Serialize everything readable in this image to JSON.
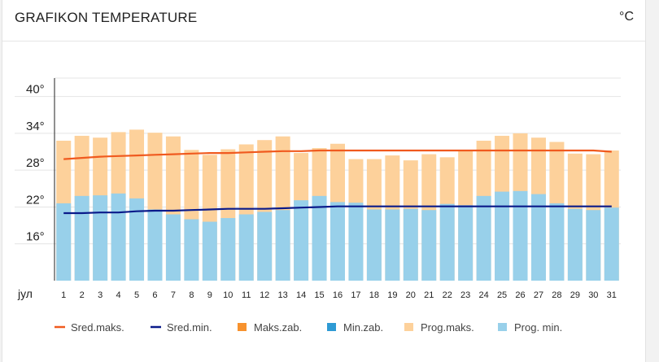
{
  "header": {
    "title": "GRAFIKON TEMPERATURE",
    "unit": "°C"
  },
  "chart_data": {
    "type": "bar",
    "title": "GRAFIKON TEMPERATURE",
    "month_label": "јул",
    "ylabel": "°C",
    "ylim": [
      10,
      43
    ],
    "yticks": [
      40,
      34,
      28,
      22,
      16
    ],
    "ytick_labels": [
      "40°",
      "34°",
      "28°",
      "22°",
      "16°"
    ],
    "grid": true,
    "categories": [
      "1",
      "2",
      "3",
      "4",
      "5",
      "6",
      "7",
      "8",
      "9",
      "10",
      "11",
      "12",
      "13",
      "14",
      "15",
      "16",
      "17",
      "18",
      "19",
      "20",
      "21",
      "22",
      "23",
      "24",
      "25",
      "26",
      "27",
      "28",
      "29",
      "30",
      "31"
    ],
    "series": [
      {
        "name": "Prog.maks.",
        "kind": "bar",
        "color": "#fdd19b",
        "values": [
          32.8,
          33.6,
          33.3,
          34.2,
          34.6,
          34.1,
          33.5,
          31.3,
          30.5,
          31.4,
          32.2,
          32.9,
          33.5,
          30.8,
          31.6,
          32.3,
          29.8,
          29.8,
          30.4,
          29.6,
          30.6,
          30.1,
          31.3,
          32.8,
          33.6,
          34.0,
          33.3,
          32.6,
          30.7,
          30.6,
          31.2
        ]
      },
      {
        "name": "Prog. min.",
        "kind": "bar",
        "color": "#98d0ea",
        "values": [
          22.6,
          23.8,
          23.9,
          24.2,
          23.4,
          21.6,
          20.8,
          20.0,
          19.6,
          20.2,
          20.8,
          21.2,
          21.5,
          23.1,
          23.8,
          22.8,
          22.7,
          21.6,
          21.6,
          21.7,
          21.5,
          22.5,
          22.3,
          23.8,
          24.5,
          24.6,
          24.1,
          22.6,
          21.7,
          21.5,
          21.9
        ]
      },
      {
        "name": "Sred.maks.",
        "kind": "line",
        "color": "#f05a1f",
        "values": [
          29.8,
          30.0,
          30.2,
          30.3,
          30.4,
          30.5,
          30.6,
          30.7,
          30.8,
          30.8,
          30.9,
          31.0,
          31.1,
          31.1,
          31.2,
          31.2,
          31.2,
          31.2,
          31.2,
          31.2,
          31.2,
          31.2,
          31.2,
          31.2,
          31.2,
          31.2,
          31.2,
          31.2,
          31.2,
          31.2,
          31.0
        ]
      },
      {
        "name": "Sred.min.",
        "kind": "line",
        "color": "#0a1a8a",
        "values": [
          21.0,
          21.0,
          21.1,
          21.1,
          21.3,
          21.4,
          21.4,
          21.5,
          21.6,
          21.7,
          21.7,
          21.7,
          21.8,
          21.9,
          22.0,
          22.1,
          22.1,
          22.1,
          22.1,
          22.1,
          22.1,
          22.1,
          22.1,
          22.1,
          22.1,
          22.1,
          22.1,
          22.1,
          22.1,
          22.1,
          22.1
        ]
      }
    ],
    "legend": {
      "placement": "bottom",
      "items": [
        {
          "label": "Sred.maks.",
          "kind": "line",
          "color": "#f05a1f"
        },
        {
          "label": "Sred.min.",
          "kind": "line",
          "color": "#0a1a8a"
        },
        {
          "label": "Maks.zab.",
          "kind": "square",
          "color": "#f7922e"
        },
        {
          "label": "Min.zab.",
          "kind": "square",
          "color": "#2e9ad4"
        },
        {
          "label": "Prog.maks.",
          "kind": "square",
          "color": "#fdd19b"
        },
        {
          "label": "Prog. min.",
          "kind": "square",
          "color": "#98d0ea"
        }
      ]
    }
  }
}
